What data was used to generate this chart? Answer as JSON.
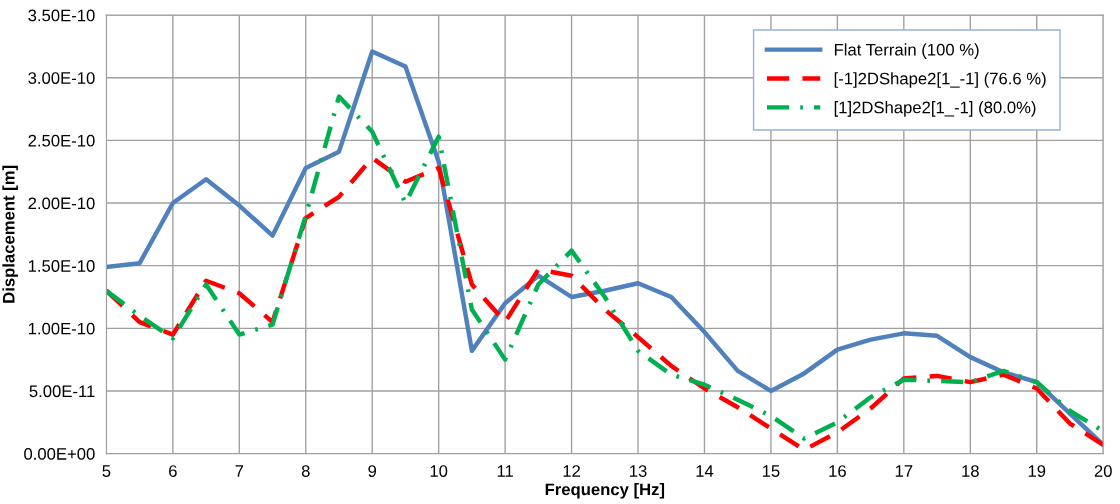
{
  "chart_data": {
    "type": "line",
    "xlabel": "Frequency [Hz]",
    "ylabel": "Displacement [m]",
    "x": [
      5,
      5.5,
      6,
      6.5,
      7,
      7.5,
      8,
      8.5,
      9,
      9.5,
      10,
      10.5,
      11,
      11.5,
      12,
      12.5,
      13,
      13.5,
      14,
      14.5,
      15,
      15.5,
      16,
      16.5,
      17,
      17.5,
      18,
      18.5,
      19,
      19.5,
      20
    ],
    "series": [
      {
        "name": "Flat Terrain (100 %)",
        "color": "#4f81bd",
        "line_style": "solid",
        "values": [
          1.49e-10,
          1.52e-10,
          2e-10,
          2.19e-10,
          1.98e-10,
          1.74e-10,
          2.28e-10,
          2.41e-10,
          3.21e-10,
          3.09e-10,
          2.33e-10,
          8.2e-11,
          1.2e-10,
          1.42e-10,
          1.25e-10,
          1.3e-10,
          1.36e-10,
          1.25e-10,
          9.7e-11,
          6.6e-11,
          5e-11,
          6.4e-11,
          8.3e-11,
          9.1e-11,
          9.6e-11,
          9.4e-11,
          7.7e-11,
          6.5e-11,
          5.7e-11,
          3.2e-11,
          7e-12
        ]
      },
      {
        "name": "[-1]2DShape2[1_-1] (76.6 %)",
        "color": "#ff0000",
        "line_style": "dashed",
        "values": [
          1.3e-10,
          1.05e-10,
          9.5e-11,
          1.38e-10,
          1.28e-10,
          1.05e-10,
          1.88e-10,
          2.05e-10,
          2.36e-10,
          2.17e-10,
          2.28e-10,
          1.35e-10,
          1.05e-10,
          1.47e-10,
          1.42e-10,
          1.15e-10,
          9.3e-11,
          7e-11,
          5.2e-11,
          3.7e-11,
          2e-11,
          3e-12,
          1.7e-11,
          3.6e-11,
          6e-11,
          6.2e-11,
          5.7e-11,
          6.3e-11,
          5.2e-11,
          2.4e-11,
          7e-12
        ]
      },
      {
        "name": "[1]2DShape2[1_-1] (80.0%)",
        "color": "#00b050",
        "line_style": "dashdot",
        "values": [
          1.3e-10,
          1.1e-10,
          9.2e-11,
          1.35e-10,
          9.5e-11,
          1.03e-10,
          1.9e-10,
          2.85e-10,
          2.57e-10,
          2e-10,
          2.53e-10,
          1.15e-10,
          7.5e-11,
          1.35e-10,
          1.62e-10,
          1.25e-10,
          8.2e-11,
          6.3e-11,
          5.5e-11,
          4.3e-11,
          3e-11,
          1.2e-11,
          2.5e-11,
          4.5e-11,
          5.9e-11,
          5.8e-11,
          5.7e-11,
          6.6e-11,
          5.7e-11,
          3.4e-11,
          1.8e-11
        ]
      }
    ],
    "xlim": [
      5,
      20
    ],
    "xticks": [
      5,
      6,
      7,
      8,
      9,
      10,
      11,
      12,
      13,
      14,
      15,
      16,
      17,
      18,
      19,
      20
    ],
    "ylim": [
      0,
      3.5e-10
    ],
    "yticks": [
      {
        "value": 0,
        "label": "0.00E+00"
      },
      {
        "value": 5e-11,
        "label": "5.00E-11"
      },
      {
        "value": 1e-10,
        "label": "1.00E-10"
      },
      {
        "value": 1.5e-10,
        "label": "1.50E-10"
      },
      {
        "value": 2e-10,
        "label": "2.00E-10"
      },
      {
        "value": 2.5e-10,
        "label": "2.50E-10"
      },
      {
        "value": 3e-10,
        "label": "3.00E-10"
      },
      {
        "value": 3.5e-10,
        "label": "3.50E-10"
      }
    ],
    "grid": true,
    "legend": "top right",
    "marker": "none"
  }
}
